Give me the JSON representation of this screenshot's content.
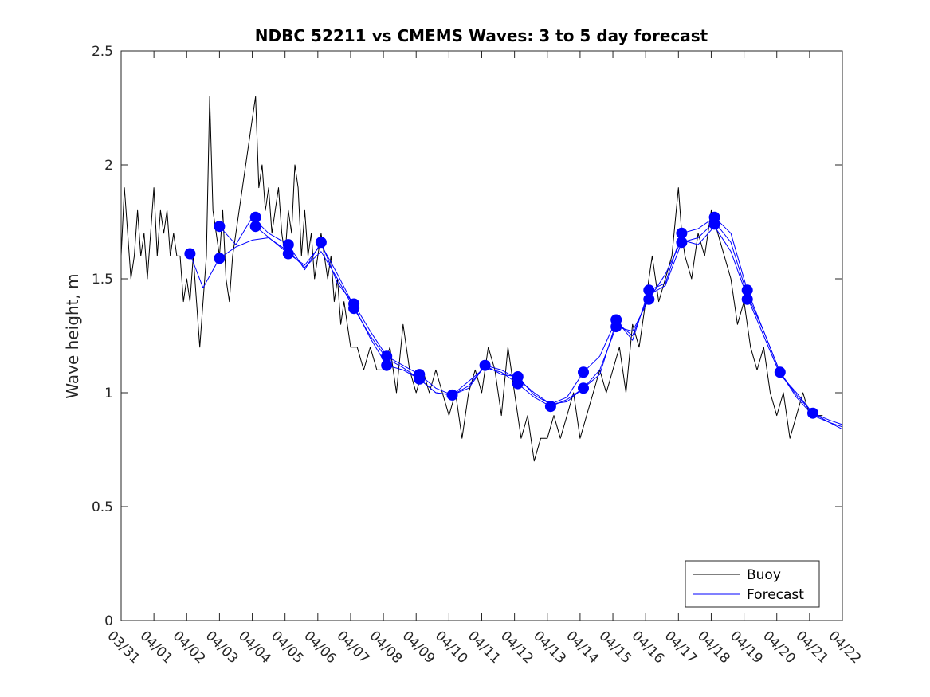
{
  "chart_data": {
    "type": "line",
    "title": "NDBC 52211 vs CMEMS Waves: 3 to 5 day forecast",
    "xlabel": "",
    "ylabel": "Wave height, m",
    "xlim_days": [
      0,
      22
    ],
    "ylim": [
      0,
      2.5
    ],
    "x_tick_labels": [
      "03/31",
      "04/01",
      "04/02",
      "04/03",
      "04/04",
      "04/05",
      "04/06",
      "04/07",
      "04/08",
      "04/09",
      "04/10",
      "04/11",
      "04/12",
      "04/13",
      "04/14",
      "04/15",
      "04/16",
      "04/17",
      "04/18",
      "04/19",
      "04/20",
      "04/21",
      "04/22"
    ],
    "y_ticks": [
      0,
      0.5,
      1,
      1.5,
      2,
      2.5
    ],
    "y_tick_labels": [
      "0",
      "0.5",
      "1",
      "1.5",
      "2",
      "2.5"
    ],
    "legend": {
      "placement": "bottom-right",
      "entries": [
        {
          "label": "Buoy",
          "color": "#000000"
        },
        {
          "label": "Forecast",
          "color": "#0000ff"
        }
      ]
    },
    "series": [
      {
        "name": "Buoy",
        "color": "#000000",
        "x": [
          0,
          0.1,
          0.2,
          0.3,
          0.4,
          0.5,
          0.6,
          0.7,
          0.8,
          0.9,
          1.0,
          1.1,
          1.2,
          1.3,
          1.4,
          1.5,
          1.6,
          1.7,
          1.8,
          1.9,
          2.0,
          2.1,
          2.2,
          2.3,
          2.4,
          2.5,
          2.6,
          2.7,
          2.8,
          2.9,
          3.0,
          3.1,
          3.2,
          3.3,
          3.4,
          3.5,
          3.6,
          3.7,
          3.8,
          3.9,
          4.0,
          4.1,
          4.2,
          4.3,
          4.4,
          4.5,
          4.6,
          4.7,
          4.8,
          4.9,
          5.0,
          5.1,
          5.2,
          5.3,
          5.4,
          5.5,
          5.6,
          5.7,
          5.8,
          5.9,
          6.0,
          6.1,
          6.2,
          6.3,
          6.4,
          6.5,
          6.6,
          6.7,
          6.8,
          6.9,
          7.0,
          7.2,
          7.4,
          7.6,
          7.8,
          8.0,
          8.2,
          8.4,
          8.6,
          8.8,
          9.0,
          9.2,
          9.4,
          9.6,
          9.8,
          10.0,
          10.2,
          10.4,
          10.6,
          10.8,
          11.0,
          11.2,
          11.4,
          11.6,
          11.8,
          12.0,
          12.2,
          12.4,
          12.6,
          12.8,
          13.0,
          13.2,
          13.4,
          13.6,
          13.8,
          14.0,
          14.2,
          14.4,
          14.6,
          14.8,
          15.0,
          15.2,
          15.4,
          15.6,
          15.8,
          16.0,
          16.2,
          16.4,
          16.6,
          16.8,
          17.0,
          17.1,
          17.2,
          17.4,
          17.6,
          17.8,
          18.0,
          18.2,
          18.4,
          18.6,
          18.8,
          19.0,
          19.2,
          19.4,
          19.6,
          19.8,
          20.0,
          20.2,
          20.4,
          20.6,
          20.8,
          21.0,
          21.2,
          21.4
        ],
        "y": [
          1.6,
          1.9,
          1.7,
          1.5,
          1.6,
          1.8,
          1.6,
          1.7,
          1.5,
          1.7,
          1.9,
          1.6,
          1.8,
          1.7,
          1.8,
          1.6,
          1.7,
          1.6,
          1.6,
          1.4,
          1.5,
          1.4,
          1.6,
          1.4,
          1.2,
          1.4,
          1.6,
          2.3,
          1.8,
          1.7,
          1.6,
          1.8,
          1.5,
          1.4,
          1.6,
          1.7,
          1.8,
          1.9,
          2.0,
          2.1,
          2.2,
          2.3,
          1.9,
          2.0,
          1.8,
          1.9,
          1.7,
          1.8,
          1.9,
          1.7,
          1.6,
          1.8,
          1.7,
          2.0,
          1.9,
          1.6,
          1.8,
          1.6,
          1.7,
          1.5,
          1.6,
          1.7,
          1.6,
          1.5,
          1.6,
          1.4,
          1.5,
          1.3,
          1.4,
          1.3,
          1.2,
          1.2,
          1.1,
          1.2,
          1.1,
          1.1,
          1.2,
          1.0,
          1.3,
          1.1,
          1.0,
          1.1,
          1.0,
          1.1,
          1.0,
          0.9,
          1.0,
          0.8,
          1.0,
          1.1,
          1.0,
          1.2,
          1.1,
          0.9,
          1.2,
          1.0,
          0.8,
          0.9,
          0.7,
          0.8,
          0.8,
          0.9,
          0.8,
          0.9,
          1.0,
          0.8,
          0.9,
          1.0,
          1.1,
          1.0,
          1.1,
          1.2,
          1.0,
          1.3,
          1.2,
          1.4,
          1.6,
          1.4,
          1.5,
          1.6,
          1.9,
          1.7,
          1.6,
          1.5,
          1.7,
          1.6,
          1.8,
          1.7,
          1.6,
          1.5,
          1.3,
          1.4,
          1.2,
          1.1,
          1.2,
          1.0,
          0.9,
          1.0,
          0.8,
          0.9,
          1.0,
          0.9,
          0.9,
          0.9
        ]
      },
      {
        "name": "Forecast",
        "color": "#0000ff",
        "x": [
          2.1,
          2.5,
          3.0,
          3.5,
          4.0,
          4.5,
          5.1,
          5.6,
          6.1,
          6.6,
          7.1,
          7.6,
          8.1,
          8.6,
          9.1,
          9.6,
          10.1,
          10.6,
          11.1,
          11.6,
          12.1,
          12.6,
          13.1,
          13.6,
          14.1,
          14.6,
          15.1,
          15.6,
          16.1,
          16.6,
          17.1,
          17.6,
          18.1,
          18.6,
          19.1,
          19.6,
          20.1,
          20.6,
          21.1,
          21.6,
          22.0
        ],
        "y": [
          1.61,
          1.46,
          1.59,
          1.64,
          1.67,
          1.68,
          1.62,
          1.55,
          1.62,
          1.5,
          1.37,
          1.25,
          1.15,
          1.11,
          1.06,
          1.0,
          0.99,
          1.05,
          1.11,
          1.09,
          1.04,
          0.98,
          0.94,
          0.97,
          1.02,
          1.1,
          1.29,
          1.27,
          1.41,
          1.52,
          1.67,
          1.65,
          1.73,
          1.62,
          1.42,
          1.25,
          1.08,
          1.0,
          0.91,
          0.87,
          0.84
        ]
      },
      {
        "name": "Forecast",
        "color": "#0000ff",
        "x": [
          3.0,
          3.5,
          4.0,
          4.5,
          5.1,
          5.6,
          6.1,
          6.6,
          7.1,
          7.6,
          8.1,
          8.6,
          9.1,
          9.6,
          10.1,
          10.6,
          11.1,
          11.6,
          12.1,
          12.6,
          13.1,
          13.6,
          14.1,
          14.6,
          15.1,
          15.6,
          16.1,
          16.6,
          17.1,
          17.6,
          18.1,
          18.6,
          19.1,
          19.6,
          20.1,
          20.6,
          21.1,
          21.6,
          22.0
        ],
        "y": [
          1.73,
          1.65,
          1.77,
          1.7,
          1.65,
          1.54,
          1.66,
          1.48,
          1.39,
          1.27,
          1.16,
          1.12,
          1.08,
          1.02,
          0.99,
          1.03,
          1.12,
          1.08,
          1.07,
          0.99,
          0.95,
          0.98,
          1.09,
          1.16,
          1.32,
          1.23,
          1.45,
          1.48,
          1.7,
          1.72,
          1.77,
          1.7,
          1.45,
          1.27,
          1.09,
          0.99,
          0.91,
          0.88,
          0.86
        ]
      },
      {
        "name": "Forecast",
        "color": "#0000ff",
        "x": [
          4.1,
          4.6,
          5.1,
          5.6,
          6.1,
          6.6,
          7.1,
          7.6,
          8.1,
          8.6,
          9.1,
          9.6,
          10.1,
          10.6,
          11.1,
          11.6,
          12.1,
          12.6,
          13.1,
          13.6,
          14.1,
          14.6,
          15.1,
          15.6,
          16.1,
          16.6,
          17.1,
          17.6,
          18.1,
          18.6,
          19.1,
          19.6,
          20.1,
          20.6,
          21.1,
          21.6,
          22.0
        ],
        "y": [
          1.73,
          1.67,
          1.61,
          1.56,
          1.65,
          1.52,
          1.38,
          1.24,
          1.12,
          1.1,
          1.06,
          1.0,
          0.99,
          1.02,
          1.12,
          1.1,
          1.06,
          1.0,
          0.95,
          0.96,
          1.02,
          1.08,
          1.31,
          1.25,
          1.43,
          1.47,
          1.66,
          1.68,
          1.75,
          1.66,
          1.43,
          1.27,
          1.09,
          0.98,
          0.9,
          0.87,
          0.85
        ]
      }
    ],
    "forecast_markers": {
      "x": [
        2.1,
        3.0,
        3.0,
        4.1,
        4.1,
        5.1,
        5.1,
        6.1,
        7.1,
        7.1,
        8.1,
        8.1,
        9.1,
        9.1,
        10.1,
        11.1,
        12.1,
        12.1,
        13.1,
        14.1,
        14.1,
        15.1,
        15.1,
        16.1,
        16.1,
        17.1,
        17.1,
        18.1,
        18.1,
        19.1,
        19.1,
        20.1,
        21.1
      ],
      "y": [
        1.61,
        1.73,
        1.59,
        1.77,
        1.73,
        1.65,
        1.61,
        1.66,
        1.39,
        1.37,
        1.16,
        1.12,
        1.08,
        1.06,
        0.99,
        1.12,
        1.07,
        1.04,
        0.94,
        1.09,
        1.02,
        1.32,
        1.29,
        1.45,
        1.41,
        1.7,
        1.66,
        1.77,
        1.74,
        1.45,
        1.41,
        1.09,
        0.91
      ]
    }
  }
}
